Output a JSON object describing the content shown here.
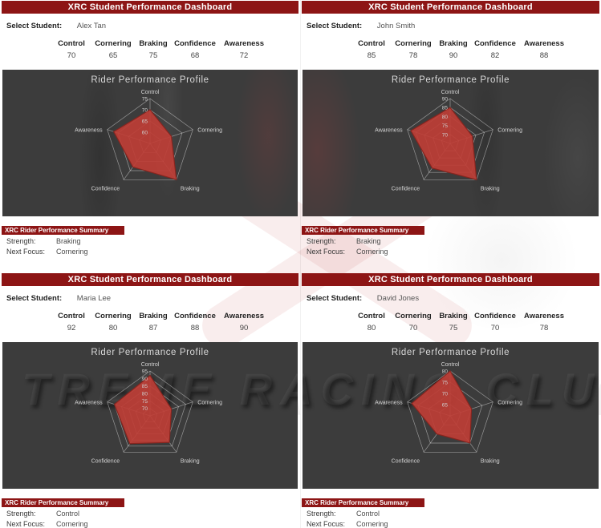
{
  "dashboard_title": "XRC Student Performance Dashboard",
  "labels": {
    "select_student": "Select Student:",
    "chart_title": "Rider Performance Profile",
    "summary_title": "XRC Rider Performance Summary",
    "strength": "Strength:",
    "next_focus": "Next Focus:"
  },
  "metrics": [
    "Control",
    "Cornering",
    "Braking",
    "Confidence",
    "Awareness"
  ],
  "watermark_text": "TREME RACING CLUB",
  "colors": {
    "banner_red": "#8d1515",
    "chart_bg": "#3c3c3c",
    "series_fill": "#be3e36",
    "grid_line": "#d9d9d9",
    "chart_text": "#d8d8d8"
  },
  "students": [
    {
      "name": "Alex Tan",
      "values": [
        70,
        65,
        75,
        68,
        72
      ],
      "strength": "Braking",
      "next_focus": "Cornering"
    },
    {
      "name": "John Smith",
      "values": [
        85,
        78,
        90,
        82,
        88
      ],
      "strength": "Braking",
      "next_focus": "Cornering"
    },
    {
      "name": "Maria Lee",
      "values": [
        92,
        80,
        87,
        88,
        90
      ],
      "strength": "Control",
      "next_focus": "Cornering"
    },
    {
      "name": "David Jones",
      "values": [
        80,
        70,
        75,
        70,
        78
      ],
      "strength": "Control",
      "next_focus": "Cornering"
    }
  ],
  "chart_data": [
    {
      "type": "radar",
      "title": "Rider Performance Profile",
      "categories": [
        "Control",
        "Cornering",
        "Braking",
        "Confidence",
        "Awareness"
      ],
      "series": [
        {
          "name": "Alex Tan",
          "values": [
            70,
            65,
            75,
            68,
            72
          ]
        }
      ],
      "axis_range": [
        55,
        75
      ],
      "ticks": [
        75,
        70,
        65,
        60
      ],
      "grid": true,
      "legend": "none"
    },
    {
      "type": "radar",
      "title": "Rider Performance Profile",
      "categories": [
        "Control",
        "Cornering",
        "Braking",
        "Confidence",
        "Awareness"
      ],
      "series": [
        {
          "name": "John Smith",
          "values": [
            85,
            78,
            90,
            82,
            88
          ]
        }
      ],
      "axis_range": [
        65,
        90
      ],
      "ticks": [
        90,
        85,
        80,
        75,
        70
      ],
      "grid": true,
      "legend": "none"
    },
    {
      "type": "radar",
      "title": "Rider Performance Profile",
      "categories": [
        "Control",
        "Cornering",
        "Braking",
        "Confidence",
        "Awareness"
      ],
      "series": [
        {
          "name": "Maria Lee",
          "values": [
            92,
            80,
            87,
            88,
            90
          ]
        }
      ],
      "axis_range": [
        65,
        95
      ],
      "ticks": [
        95,
        90,
        85,
        80,
        75,
        70
      ],
      "grid": true,
      "legend": "none"
    },
    {
      "type": "radar",
      "title": "Rider Performance Profile",
      "categories": [
        "Control",
        "Cornering",
        "Braking",
        "Confidence",
        "Awareness"
      ],
      "series": [
        {
          "name": "David Jones",
          "values": [
            80,
            70,
            75,
            70,
            78
          ]
        }
      ],
      "axis_range": [
        60,
        80
      ],
      "ticks": [
        80,
        75,
        70,
        65
      ],
      "grid": true,
      "legend": "none"
    }
  ]
}
